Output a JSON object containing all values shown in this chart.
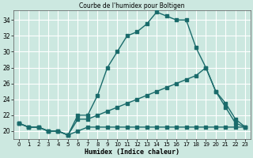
{
  "title": "Courbe de l'humidex pour Boltigen",
  "xlabel": "Humidex (Indice chaleur)",
  "bg_color": "#cce8e0",
  "grid_color": "#ffffff",
  "line_color": "#1a6b6b",
  "xlim": [
    -0.5,
    23.5
  ],
  "ylim": [
    19.0,
    35.2
  ],
  "xticks": [
    0,
    1,
    2,
    3,
    4,
    5,
    6,
    7,
    8,
    9,
    10,
    11,
    12,
    13,
    14,
    15,
    16,
    17,
    18,
    19,
    20,
    21,
    22,
    23
  ],
  "yticks": [
    20,
    22,
    24,
    26,
    28,
    30,
    32,
    34
  ],
  "line1_x": [
    0,
    1,
    2,
    3,
    4,
    5,
    6,
    7,
    8,
    9,
    10,
    11,
    12,
    13,
    14,
    15,
    16,
    17,
    18,
    19,
    20,
    21,
    22,
    23
  ],
  "line1_y": [
    21.0,
    20.5,
    20.5,
    20.0,
    20.0,
    19.5,
    22.0,
    22.0,
    24.5,
    28.0,
    30.0,
    32.0,
    32.5,
    33.5,
    35.0,
    34.5,
    34.0,
    34.0,
    30.5,
    28.0,
    25.0,
    23.0,
    21.0,
    20.5
  ],
  "line2_x": [
    0,
    1,
    2,
    3,
    4,
    5,
    6,
    7,
    8,
    9,
    10,
    11,
    12,
    13,
    14,
    15,
    16,
    17,
    18,
    19,
    20,
    21,
    22,
    23
  ],
  "line2_y": [
    21.0,
    20.5,
    20.5,
    20.0,
    20.0,
    19.5,
    21.5,
    21.5,
    22.0,
    22.5,
    23.0,
    23.5,
    24.0,
    24.5,
    25.0,
    25.5,
    26.0,
    26.5,
    27.0,
    28.0,
    25.0,
    23.5,
    21.5,
    20.5
  ],
  "line3_x": [
    0,
    1,
    2,
    3,
    4,
    5,
    6,
    7,
    8,
    9,
    10,
    11,
    12,
    13,
    14,
    15,
    16,
    17,
    18,
    19,
    20,
    21,
    22,
    23
  ],
  "line3_y": [
    21.0,
    20.5,
    20.5,
    20.0,
    20.0,
    19.5,
    20.0,
    20.5,
    20.5,
    20.5,
    20.5,
    20.5,
    20.5,
    20.5,
    20.5,
    20.5,
    20.5,
    20.5,
    20.5,
    20.5,
    20.5,
    20.5,
    20.5,
    20.5
  ]
}
